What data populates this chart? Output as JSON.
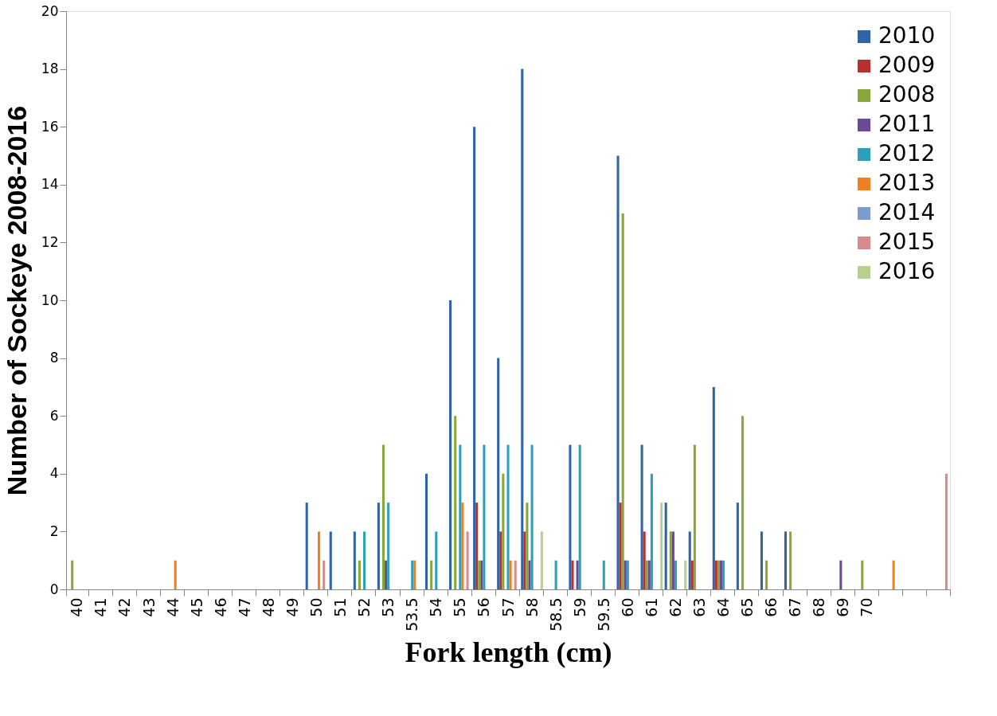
{
  "chart_data": {
    "type": "bar",
    "xlabel": "Fork length (cm)",
    "ylabel": "Number of Sockeye 2008-2016",
    "categories": [
      "40",
      "41",
      "42",
      "43",
      "44",
      "45",
      "46",
      "47",
      "48",
      "49",
      "50",
      "51",
      "52",
      "53",
      "53.5",
      "54",
      "55",
      "56",
      "57",
      "58",
      "58.5",
      "59",
      "59.5",
      "60",
      "61",
      "62",
      "63",
      "64",
      "65",
      "66",
      "67",
      "68",
      "69",
      "70",
      null,
      null,
      null
    ],
    "series": [
      {
        "name": "2010",
        "color": "#2f64a8",
        "values": [
          0,
          0,
          0,
          0,
          0,
          0,
          0,
          0,
          0,
          0,
          3,
          2,
          2,
          3,
          0,
          4,
          10,
          16,
          8,
          18,
          0,
          5,
          0,
          15,
          5,
          3,
          2,
          7,
          3,
          2,
          2,
          0,
          0,
          0,
          0,
          0,
          0
        ]
      },
      {
        "name": "2009",
        "color": "#b8302e",
        "values": [
          0,
          0,
          0,
          0,
          0,
          0,
          0,
          0,
          0,
          0,
          0,
          0,
          0,
          0,
          0,
          0,
          0,
          3,
          2,
          2,
          0,
          1,
          0,
          3,
          2,
          0,
          1,
          1,
          0,
          0,
          0,
          0,
          0,
          0,
          0,
          0,
          0
        ]
      },
      {
        "name": "2008",
        "color": "#87a838",
        "values": [
          1,
          0,
          0,
          0,
          0,
          0,
          0,
          0,
          0,
          0,
          0,
          0,
          1,
          5,
          0,
          1,
          6,
          1,
          4,
          3,
          0,
          0,
          0,
          13,
          1,
          2,
          5,
          1,
          6,
          1,
          2,
          0,
          0,
          1,
          0,
          0,
          0
        ]
      },
      {
        "name": "2011",
        "color": "#6a4a94",
        "values": [
          0,
          0,
          0,
          0,
          0,
          0,
          0,
          0,
          0,
          0,
          0,
          0,
          0,
          1,
          0,
          0,
          0,
          1,
          0,
          1,
          0,
          1,
          0,
          1,
          1,
          2,
          0,
          1,
          0,
          0,
          0,
          0,
          1,
          0,
          0,
          0,
          0
        ]
      },
      {
        "name": "2012",
        "color": "#2aa0bd",
        "values": [
          0,
          0,
          0,
          0,
          0,
          0,
          0,
          0,
          0,
          0,
          0,
          0,
          2,
          3,
          1,
          2,
          5,
          5,
          5,
          5,
          1,
          5,
          1,
          1,
          4,
          1,
          0,
          1,
          0,
          0,
          0,
          0,
          0,
          0,
          0,
          0,
          0
        ]
      },
      {
        "name": "2013",
        "color": "#f07f1e",
        "values": [
          0,
          0,
          0,
          0,
          1,
          0,
          0,
          0,
          0,
          0,
          2,
          0,
          0,
          0,
          1,
          0,
          3,
          0,
          1,
          0,
          0,
          0,
          0,
          0,
          0,
          0,
          0,
          0,
          0,
          0,
          0,
          0,
          0,
          0,
          1,
          0,
          0
        ]
      },
      {
        "name": "2014",
        "color": "#7d9ccb",
        "values": [
          0,
          0,
          0,
          0,
          0,
          0,
          0,
          0,
          0,
          0,
          0,
          0,
          0,
          0,
          0,
          0,
          0,
          0,
          0,
          0,
          0,
          0,
          0,
          0,
          0,
          0,
          0,
          0,
          0,
          0,
          0,
          0,
          0,
          0,
          0,
          0,
          0
        ]
      },
      {
        "name": "2015",
        "color": "#d68a8a",
        "values": [
          0,
          0,
          0,
          0,
          0,
          0,
          0,
          0,
          0,
          0,
          1,
          0,
          0,
          0,
          0,
          0,
          2,
          0,
          1,
          0,
          0,
          0,
          0,
          0,
          0,
          0,
          0,
          0,
          0,
          0,
          0,
          0,
          0,
          0,
          0,
          0,
          4
        ]
      },
      {
        "name": "2016",
        "color": "#b6d08f",
        "values": [
          0,
          0,
          0,
          0,
          0,
          0,
          0,
          0,
          0,
          0,
          0,
          0,
          0,
          0,
          0,
          0,
          0,
          0,
          0,
          2,
          0,
          0,
          0,
          0,
          3,
          1,
          0,
          0,
          0,
          0,
          0,
          0,
          0,
          0,
          0,
          0,
          0
        ]
      }
    ],
    "ylim": [
      0,
      20
    ],
    "yticks": [
      0,
      2,
      4,
      6,
      8,
      10,
      12,
      14,
      16,
      18,
      20
    ],
    "grid": false,
    "legend": "top right"
  }
}
